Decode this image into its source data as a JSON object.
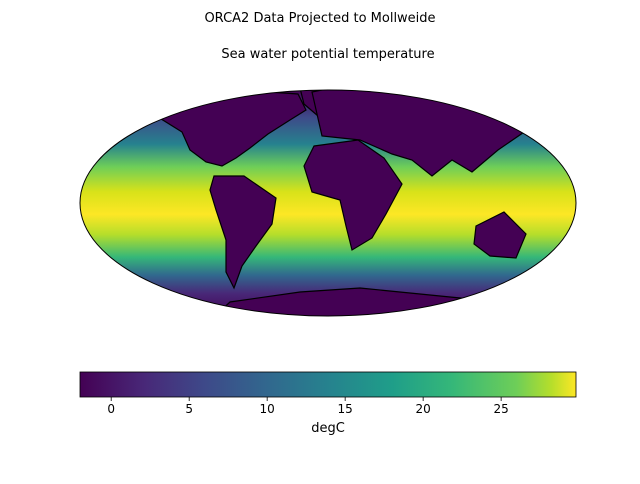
{
  "title": "ORCA2 Data Projected to Mollweide",
  "subtitle": "Sea water potential temperature",
  "colorbar": {
    "label": "degC",
    "clim": [
      -2,
      29.8
    ],
    "ticks": [
      0,
      5,
      10,
      15,
      20,
      25
    ]
  }
}
